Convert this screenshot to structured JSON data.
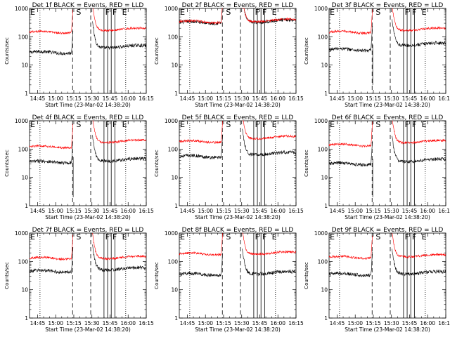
{
  "chart_data": {
    "type": "line",
    "layout": "3x3",
    "y_scale": "log",
    "ylim": [
      1,
      1000
    ],
    "y_ticks": [
      1,
      10,
      100,
      1000
    ],
    "y_tick_labels": [
      "1",
      "10",
      "100",
      "1000"
    ],
    "xlim": [
      "14:38:20",
      "16:15:00"
    ],
    "x_ticks": [
      "14:45",
      "15:00",
      "15:15",
      "15:30",
      "15:45",
      "16:00",
      "16:15"
    ],
    "ylabel": "Counts/sec",
    "xlabel": "Start Time (23-Mar-02 14:38:20)",
    "colors": {
      "events": "#000000",
      "lld": "#ff0000",
      "frame": "#000000"
    },
    "event_markers": {
      "dashed": [
        "15:14",
        "15:29"
      ],
      "solid": [
        "15:40",
        "15:43",
        "15:46",
        "15:49"
      ],
      "dotted": [
        "14:47",
        "15:58"
      ]
    },
    "panel_letters": [
      {
        "label": "E",
        "x": "14:39"
      },
      {
        "label": "S",
        "x": "15:17"
      },
      {
        "label": "F",
        "x": "15:41"
      },
      {
        "label": "F",
        "x": "15:47"
      },
      {
        "label": "E",
        "x": "15:55"
      }
    ],
    "panels": [
      {
        "title": "Det 1f BLACK = Events, RED = LLD",
        "events_level": 28,
        "lld_level": 145,
        "events_after": 45,
        "lld_after": 185,
        "events_spike_min": null
      },
      {
        "title": "Det 2f BLACK = Events, RED = LLD",
        "events_level": 320,
        "lld_level": 340,
        "events_after": 360,
        "lld_after": 380,
        "events_spike_min": null
      },
      {
        "title": "Det 3f BLACK = Events, RED = LLD",
        "events_level": 35,
        "lld_level": 145,
        "events_after": 55,
        "lld_after": 185,
        "events_spike_min": 2
      },
      {
        "title": "Det 4f BLACK = Events, RED = LLD",
        "events_level": 35,
        "lld_level": 120,
        "events_after": 42,
        "lld_after": 190,
        "events_spike_min": 2
      },
      {
        "title": "Det 5f BLACK = Events, RED = LLD",
        "events_level": 55,
        "lld_level": 185,
        "events_after": 70,
        "lld_after": 260,
        "events_spike_min": null
      },
      {
        "title": "Det 6f BLACK = Events, RED = LLD",
        "events_level": 30,
        "lld_level": 140,
        "events_after": 40,
        "lld_after": 185,
        "events_spike_min": 2
      },
      {
        "title": "Det 7f BLACK = Events, RED = LLD",
        "events_level": 45,
        "lld_level": 130,
        "events_after": 55,
        "lld_after": 140,
        "events_spike_min": null
      },
      {
        "title": "Det 8f BLACK = Events, RED = LLD",
        "events_level": 35,
        "lld_level": 185,
        "events_after": 40,
        "lld_after": 200,
        "events_spike_min": null
      },
      {
        "title": "Det 9f BLACK = Events, RED = LLD",
        "events_level": 35,
        "lld_level": 140,
        "events_after": 40,
        "lld_after": 160,
        "events_spike_min": null
      }
    ]
  }
}
